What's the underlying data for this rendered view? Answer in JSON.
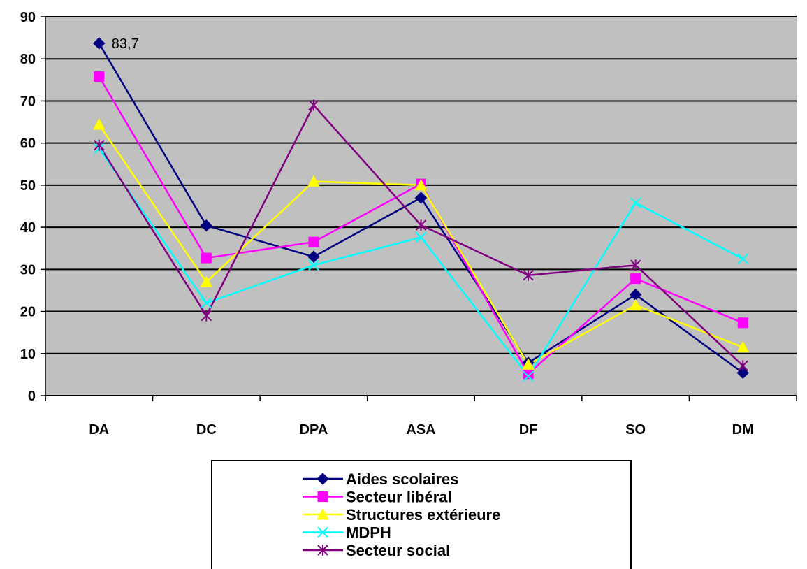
{
  "chart_data": {
    "type": "line",
    "categories": [
      "DA",
      "DC",
      "DPA",
      "ASA",
      "DF",
      "SO",
      "DM"
    ],
    "ylim": [
      0,
      90
    ],
    "yticks": [
      0,
      10,
      20,
      30,
      40,
      50,
      60,
      70,
      80,
      90
    ],
    "grid": true,
    "legend_position": "bottom",
    "series": [
      {
        "name": "Aides scolaires",
        "color": "#000080",
        "marker": "diamond",
        "values": [
          83.7,
          40.4,
          33.0,
          47.0,
          7.8,
          24.0,
          5.4
        ]
      },
      {
        "name": "Secteur libéral",
        "color": "#FF00FF",
        "marker": "square",
        "values": [
          75.8,
          32.7,
          36.5,
          50.3,
          5.2,
          27.8,
          17.3
        ]
      },
      {
        "name": "Structures extérieure",
        "color": "#FFFF00",
        "marker": "triangle",
        "values": [
          64.4,
          27.0,
          50.9,
          50.0,
          7.4,
          21.5,
          11.5
        ]
      },
      {
        "name": "MDPH",
        "color": "#00FFFF",
        "marker": "x",
        "values": [
          58.7,
          22.0,
          31.0,
          37.6,
          4.6,
          45.8,
          32.5
        ]
      },
      {
        "name": "Secteur social",
        "color": "#800080",
        "marker": "star",
        "values": [
          59.5,
          19.0,
          69.0,
          40.5,
          28.6,
          31.0,
          7.1
        ]
      }
    ],
    "annotations": [
      {
        "series": "Aides scolaires",
        "category": "DA",
        "text": "83,7"
      }
    ]
  }
}
